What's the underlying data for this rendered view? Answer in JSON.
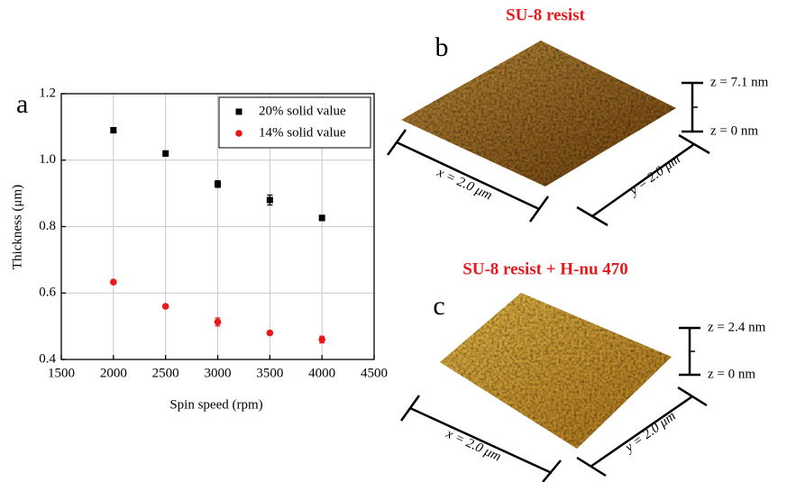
{
  "chart_data": {
    "type": "scatter",
    "panel_label": "a",
    "x_label": "Spin speed (rpm)",
    "y_label": "Thickness (μm)",
    "x": [
      2000,
      2500,
      3000,
      3500,
      4000
    ],
    "series": [
      {
        "name": "20% solid value",
        "color": "#000000",
        "marker": "square",
        "values": [
          1.09,
          1.02,
          0.928,
          0.88,
          0.826
        ],
        "errors": [
          0.008,
          0.008,
          0.01,
          0.015,
          0.008
        ]
      },
      {
        "name": "14% solid value",
        "color": "#e8191c",
        "marker": "circle",
        "values": [
          0.633,
          0.56,
          0.513,
          0.48,
          0.46
        ],
        "errors": [
          0.005,
          0.005,
          0.012,
          0.006,
          0.01
        ]
      }
    ],
    "xlim": [
      1500,
      4500
    ],
    "xticks": [
      1500,
      2000,
      2500,
      3000,
      3500,
      4000,
      4500
    ],
    "ylim": [
      0.4,
      1.2
    ],
    "yticks": [
      0.4,
      0.6,
      0.8,
      {
        "value": 1,
        "label": "1.0"
      },
      1.2
    ],
    "grid": true,
    "legend": "upper right"
  },
  "afm_panels": [
    {
      "label": "b",
      "title": "SU-8 resist",
      "z_top": "z = 7.1 nm",
      "z_bottom": "z = 0 nm",
      "x_size": "x = 2.0 μm",
      "y_size": "y = 2.0 μm"
    },
    {
      "label": "c",
      "title": "SU-8 resist + H-nu 470",
      "z_top": "z = 2.4 nm",
      "z_bottom": "z = 0 nm",
      "x_size": "x = 2.0 μm",
      "y_size": "y = 2.0 μm"
    }
  ]
}
